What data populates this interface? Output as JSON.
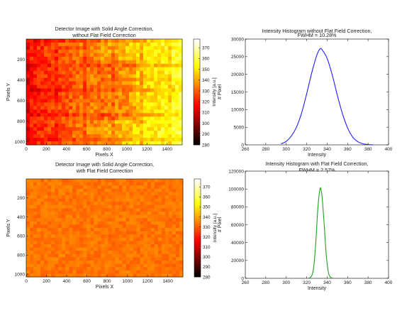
{
  "chart_data": [
    {
      "type": "heatmap",
      "title": [
        "Detector Image with Solid Angle Correction,",
        "without Flat Field Correction"
      ],
      "xlabel": "Pixels X",
      "ylabel": "Pixels Y",
      "xlim": [
        0,
        1550
      ],
      "ylim": [
        1030,
        0
      ],
      "xticks": [
        0,
        200,
        400,
        600,
        800,
        1000,
        1200,
        1400
      ],
      "yticks": [
        200,
        400,
        600,
        800,
        1000
      ],
      "colorbar": {
        "label": "Intensity  [a.u.]",
        "range": [
          280,
          378
        ],
        "ticks": [
          280,
          290,
          300,
          310,
          320,
          330,
          340,
          350,
          360,
          370
        ]
      },
      "value_range": [
        300,
        370
      ],
      "pattern": "darker-left / brighter-right with faint grid tiling"
    },
    {
      "type": "line",
      "title": [
        "Intensity Histogram without Flat Field Correction,",
        "FWHM = 10.28%"
      ],
      "xlabel": "Intensity",
      "ylabel": "# Pixel",
      "xlim": [
        260,
        400
      ],
      "ylim": [
        0,
        30000
      ],
      "xticks": [
        260,
        280,
        300,
        320,
        340,
        360,
        380,
        400
      ],
      "yticks": [
        0,
        5000,
        10000,
        15000,
        20000,
        25000,
        30000
      ],
      "color": "#1f1fff",
      "series": [
        {
          "x": [
            295,
            300,
            305,
            310,
            315,
            320,
            325,
            330,
            333,
            335,
            340,
            345,
            350,
            355,
            360,
            365,
            370,
            375,
            380,
            385
          ],
          "values": [
            300,
            1000,
            2500,
            5000,
            9000,
            14500,
            20500,
            25500,
            27200,
            27000,
            24500,
            19800,
            14000,
            8800,
            4800,
            2200,
            900,
            300,
            100,
            0
          ]
        }
      ]
    },
    {
      "type": "heatmap",
      "title": [
        "Detector Image with Solid Angle Correction,",
        "with Flat Field Correction"
      ],
      "xlabel": "Pixels X",
      "ylabel": "Pixels Y",
      "xlim": [
        0,
        1550
      ],
      "ylim": [
        1030,
        0
      ],
      "xticks": [
        0,
        200,
        400,
        600,
        800,
        1000,
        1200,
        1400
      ],
      "yticks": [
        200,
        400,
        600,
        800,
        1000
      ],
      "colorbar": {
        "label": "Intensity  [a.u.]",
        "range": [
          280,
          378
        ],
        "ticks": [
          280,
          290,
          300,
          310,
          320,
          330,
          340,
          350,
          360,
          370
        ]
      },
      "value_range": [
        330,
        337
      ],
      "pattern": "uniform"
    },
    {
      "type": "line",
      "title": [
        "Intensity Histogram with Flat Field Correction,",
        "FWHM = 2.57%"
      ],
      "xlabel": "Intensity",
      "ylabel": "# Pixel",
      "xlim": [
        260,
        400
      ],
      "ylim": [
        0,
        120000
      ],
      "xticks": [
        260,
        280,
        300,
        320,
        340,
        360,
        380,
        400
      ],
      "yticks": [
        0,
        20000,
        40000,
        60000,
        80000,
        100000,
        120000
      ],
      "color": "#1aa31a",
      "series": [
        {
          "x": [
            322,
            325,
            327,
            329,
            331,
            333,
            334,
            335,
            337,
            339,
            341,
            343,
            346
          ],
          "values": [
            0,
            3000,
            14000,
            42000,
            80000,
            100000,
            99000,
            92000,
            62000,
            28000,
            8000,
            1500,
            0
          ]
        }
      ]
    }
  ]
}
